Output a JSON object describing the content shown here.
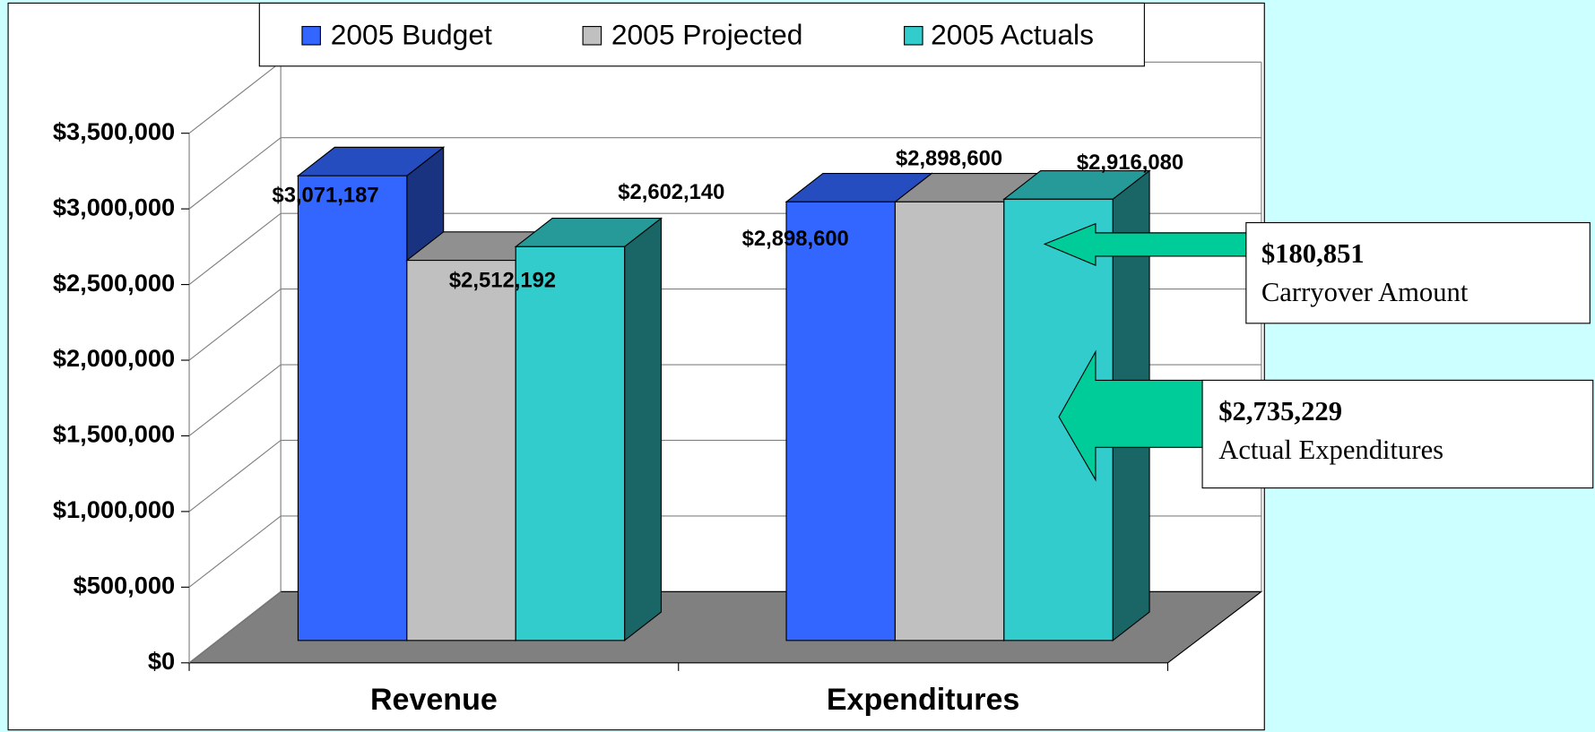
{
  "chart_data": {
    "type": "bar3d",
    "categories": [
      "Revenue",
      "Expenditures"
    ],
    "series": [
      {
        "name": "2005 Budget",
        "color": "#3366ff",
        "values": [
          3071187,
          2898600
        ],
        "value_labels": [
          "$3,071,187",
          "$2,898,600"
        ]
      },
      {
        "name": "2005 Projected",
        "color": "#c0c0c0",
        "values": [
          2512192,
          2898600
        ],
        "value_labels": [
          "$2,512,192",
          "$2,898,600"
        ]
      },
      {
        "name": "2005 Actuals",
        "color": "#33cccc",
        "values": [
          2602140,
          2916080
        ],
        "value_labels": [
          "$2,602,140",
          "$2,916,080"
        ]
      }
    ],
    "ylim": [
      0,
      3500000
    ],
    "yticks": [
      {
        "value": 0,
        "label": "$0"
      },
      {
        "value": 500000,
        "label": "$500,000"
      },
      {
        "value": 1000000,
        "label": "$1,000,000"
      },
      {
        "value": 1500000,
        "label": "$1,500,000"
      },
      {
        "value": 2000000,
        "label": "$2,000,000"
      },
      {
        "value": 2500000,
        "label": "$2,500,000"
      },
      {
        "value": 3000000,
        "label": "$3,000,000"
      },
      {
        "value": 3500000,
        "label": "$3,500,000"
      }
    ],
    "grid": true,
    "legend": "top",
    "annotations": [
      {
        "title": "$180,851",
        "text": "Carryover Amount"
      },
      {
        "title": "$2,735,229",
        "text": "Actual Expenditures"
      }
    ]
  }
}
